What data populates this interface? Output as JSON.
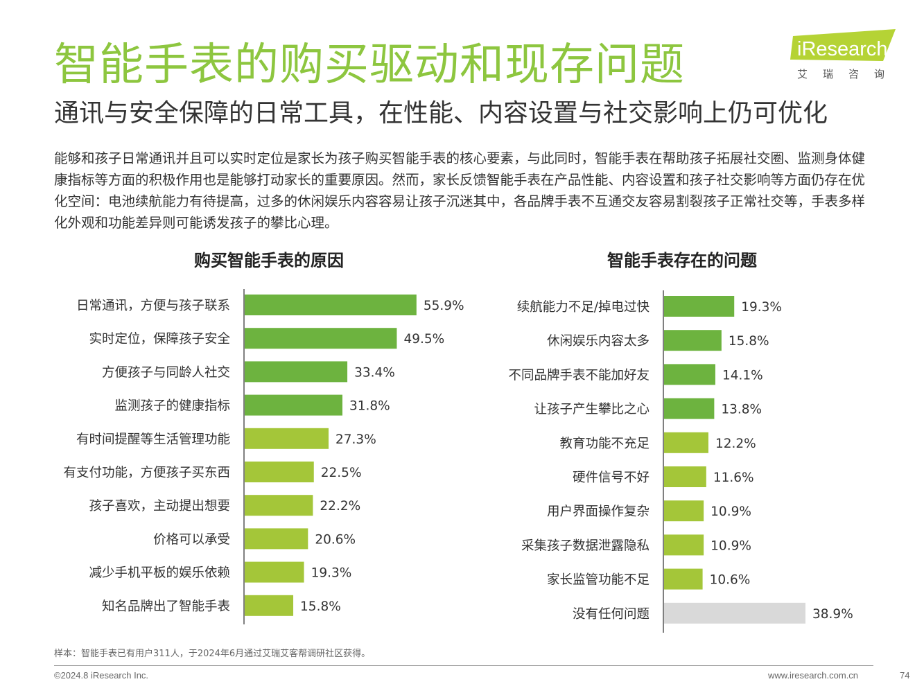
{
  "header": {
    "title": "智能手表的购买驱动和现存问题",
    "subtitle": "通讯与安全保障的日常工具，在性能、内容设置与社交影响上仍可优化"
  },
  "logo": {
    "text": "iResearch",
    "cn_text": "艾瑞咨询",
    "colors": {
      "shape": "#b5d335",
      "cn_text": "#555555"
    }
  },
  "body_text": "能够和孩子日常通讯并且可以实时定位是家长为孩子购买智能手表的核心要素，与此同时，智能手表在帮助孩子拓展社交圈、监测身体健康指标等方面的积极作用也是能够打动家长的重要原因。然而，家长反馈智能手表在产品性能、内容设置和孩子社交影响等方面仍存在优化空间：电池续航能力有待提高，过多的休闲娱乐内容容易让孩子沉迷其中，各品牌手表不互通交友容易割裂孩子正常社交等，手表多样化外观和功能差异则可能诱发孩子的攀比心理。",
  "chart_data": [
    {
      "type": "bar",
      "orientation": "horizontal",
      "title": "购买智能手表的原因",
      "categories": [
        "日常通讯，方便与孩子联系",
        "实时定位，保障孩子安全",
        "方便孩子与同龄人社交",
        "监测孩子的健康指标",
        "有时间提醒等生活管理功能",
        "有支付功能，方便孩子买东西",
        "孩子喜欢，主动提出想要",
        "价格可以承受",
        "减少手机平板的娱乐依赖",
        "知名品牌出了智能手表"
      ],
      "values": [
        55.9,
        49.5,
        33.4,
        31.8,
        27.3,
        22.5,
        22.2,
        20.6,
        19.3,
        15.8
      ],
      "value_labels": [
        "55.9%",
        "49.5%",
        "33.4%",
        "31.8%",
        "27.3%",
        "22.5%",
        "22.2%",
        "20.6%",
        "19.3%",
        "15.8%"
      ],
      "unit": "%",
      "xlim": [
        0,
        60
      ],
      "bar_colors": [
        "#6db33f",
        "#6db33f",
        "#6db33f",
        "#6db33f",
        "#a4c639",
        "#a4c639",
        "#a4c639",
        "#a4c639",
        "#a4c639",
        "#a4c639"
      ],
      "grid": false,
      "legend": "none"
    },
    {
      "type": "bar",
      "orientation": "horizontal",
      "title": "智能手表存在的问题",
      "categories": [
        "续航能力不足/掉电过快",
        "休闲娱乐内容太多",
        "不同品牌手表不能加好友",
        "让孩子产生攀比之心",
        "教育功能不充足",
        "硬件信号不好",
        "用户界面操作复杂",
        "采集孩子数据泄露隐私",
        "家长监管功能不足",
        "没有任何问题"
      ],
      "values": [
        19.3,
        15.8,
        14.1,
        13.8,
        12.2,
        11.6,
        10.9,
        10.9,
        10.6,
        38.9
      ],
      "value_labels": [
        "19.3%",
        "15.8%",
        "14.1%",
        "13.8%",
        "12.2%",
        "11.6%",
        "10.9%",
        "10.9%",
        "10.6%",
        "38.9%"
      ],
      "unit": "%",
      "xlim": [
        0,
        45
      ],
      "bar_colors": [
        "#6db33f",
        "#6db33f",
        "#6db33f",
        "#6db33f",
        "#a4c639",
        "#a4c639",
        "#a4c639",
        "#a4c639",
        "#a4c639",
        "#d9d9d9"
      ],
      "grid": false,
      "legend": "none"
    }
  ],
  "footer": {
    "note": "样本：智能手表已有用户311人，于2024年6月通过艾瑞艾客帮调研社区获得。",
    "copyright": "©2024.8 iResearch Inc.",
    "website": "www.iresearch.com.cn",
    "page": "74"
  }
}
